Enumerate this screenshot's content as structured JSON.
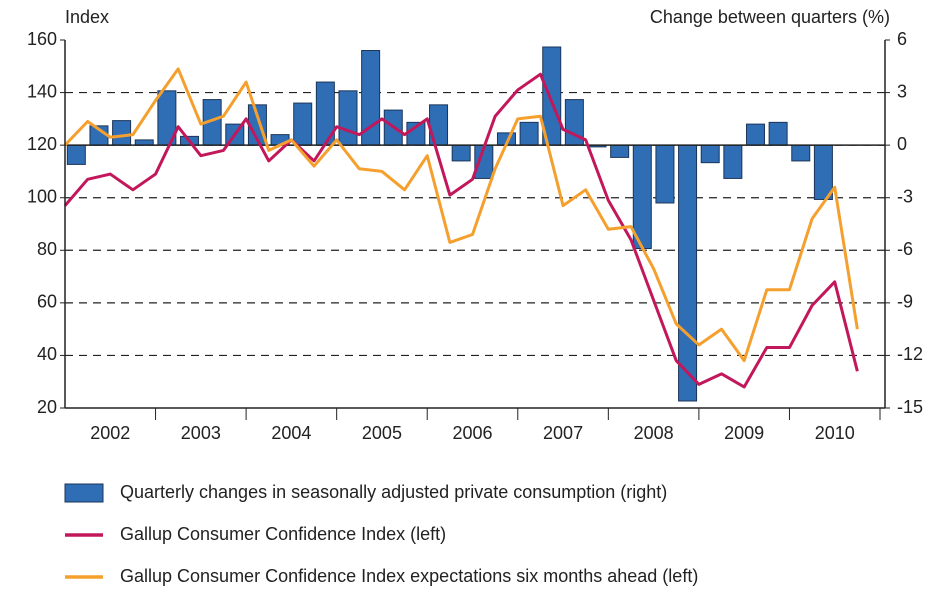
{
  "chart_data": {
    "type": "bar_line",
    "y_label": "Index",
    "y2_label": "Change between quarters (%)",
    "xlim": [
      2002,
      2011
    ],
    "xticks": [
      {
        "value": 2002.5,
        "label": "2002"
      },
      {
        "value": 2003.5,
        "label": "2003"
      },
      {
        "value": 2004.5,
        "label": "2004"
      },
      {
        "value": 2005.5,
        "label": "2005"
      },
      {
        "value": 2006.5,
        "label": "2006"
      },
      {
        "value": 2007.5,
        "label": "2007"
      },
      {
        "value": 2008.5,
        "label": "2008"
      },
      {
        "value": 2009.5,
        "label": "2009"
      },
      {
        "value": 2010.5,
        "label": "2010"
      }
    ],
    "ylim": [
      20,
      160
    ],
    "yticks": [
      20,
      40,
      60,
      80,
      100,
      120,
      140,
      160
    ],
    "y2lim": [
      -15,
      6
    ],
    "y2ticks": [
      -15,
      -12,
      -9,
      -6,
      -3,
      0,
      3,
      6
    ],
    "grid": true,
    "legend": "bottom",
    "series": [
      {
        "name": "Quarterly changes in seasonally adjusted private consumption (right)",
        "type": "bar",
        "axis": "y2",
        "color": "#2f6db5",
        "x": [
          2002.125,
          2002.375,
          2002.625,
          2002.875,
          2003.125,
          2003.375,
          2003.625,
          2003.875,
          2004.125,
          2004.375,
          2004.625,
          2004.875,
          2005.125,
          2005.375,
          2005.625,
          2005.875,
          2006.125,
          2006.375,
          2006.625,
          2006.875,
          2007.125,
          2007.375,
          2007.625,
          2007.875,
          2008.125,
          2008.375,
          2008.625,
          2008.875,
          2009.125,
          2009.375,
          2009.625,
          2009.875,
          2010.125,
          2010.375,
          2010.625,
          2010.875
        ],
        "values": [
          -1.1,
          1.1,
          1.4,
          0.3,
          3.1,
          0.5,
          2.6,
          1.2,
          2.3,
          0.6,
          2.4,
          3.6,
          3.1,
          5.4,
          2.0,
          1.3,
          2.3,
          -0.9,
          -1.9,
          0.7,
          1.3,
          5.6,
          2.6,
          -0.1,
          -0.7,
          -5.9,
          -3.3,
          -14.6,
          -1.0,
          -1.9,
          1.2,
          1.3,
          -0.9,
          -3.1,
          null,
          null
        ]
      },
      {
        "name": "Gallup Consumer Confidence Index (left)",
        "type": "line",
        "axis": "y",
        "color": "#c2185b",
        "x": [
          2002.0,
          2002.25,
          2002.5,
          2002.75,
          2003.0,
          2003.25,
          2003.5,
          2003.75,
          2004.0,
          2004.25,
          2004.5,
          2004.75,
          2005.0,
          2005.25,
          2005.5,
          2005.75,
          2006.0,
          2006.25,
          2006.5,
          2006.75,
          2007.0,
          2007.25,
          2007.5,
          2007.75,
          2008.0,
          2008.25,
          2008.5,
          2008.75,
          2009.0,
          2009.25,
          2009.5,
          2009.75,
          2010.0,
          2010.25,
          2010.5,
          2010.75
        ],
        "values": [
          97,
          107,
          109,
          103,
          109,
          127,
          116,
          118,
          130,
          114,
          122,
          114,
          127,
          124,
          130,
          124,
          130,
          101,
          107,
          131,
          141,
          147,
          126,
          122,
          99,
          84,
          61,
          38,
          29,
          33,
          28,
          43,
          43,
          59,
          68,
          34
        ]
      },
      {
        "name": "Gallup Consumer Confidence Index expectations six months ahead (left)",
        "type": "line",
        "axis": "y",
        "color": "#f5a02e",
        "x": [
          2002.0,
          2002.25,
          2002.5,
          2002.75,
          2003.0,
          2003.25,
          2003.5,
          2003.75,
          2004.0,
          2004.25,
          2004.5,
          2004.75,
          2005.0,
          2005.25,
          2005.5,
          2005.75,
          2006.0,
          2006.25,
          2006.5,
          2006.75,
          2007.0,
          2007.25,
          2007.5,
          2007.75,
          2008.0,
          2008.25,
          2008.5,
          2008.75,
          2009.0,
          2009.25,
          2009.5,
          2009.75,
          2010.0,
          2010.25,
          2010.5,
          2010.75
        ],
        "values": [
          120,
          129,
          123,
          124,
          137,
          149,
          128,
          131,
          144,
          118,
          122,
          112,
          122,
          111,
          110,
          103,
          116,
          83,
          86,
          111,
          130,
          131,
          97,
          103,
          88,
          89,
          73,
          52,
          44,
          50,
          38,
          65,
          65,
          92,
          104,
          50
        ]
      }
    ]
  }
}
